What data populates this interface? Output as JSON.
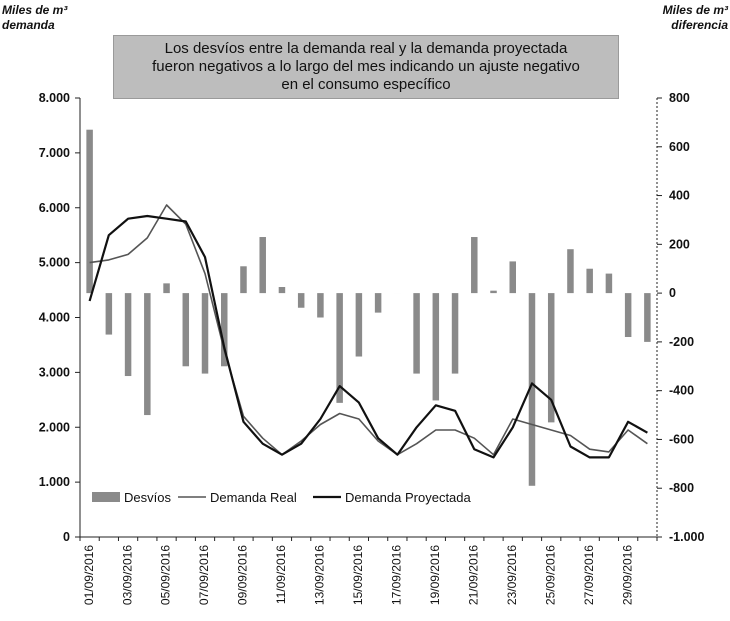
{
  "y_left_label": {
    "line1": "Miles de m³",
    "line2": "demanda"
  },
  "y_right_label": {
    "line1": "Miles de m³",
    "line2": "diferencia"
  },
  "annotation": {
    "line1": "Los desvíos entre la demanda real y la demanda proyectada",
    "line2": "fueron negativos a lo largo del mes indicando un ajuste negativo",
    "line3": "en el consumo específico"
  },
  "colors": {
    "bars": "#8a8a8a",
    "real": "#555555",
    "proyectada": "#111111",
    "annotation_bg": "#bdbdbd"
  },
  "chart_data": {
    "type": "bar+line",
    "x": [
      "01/09/2016",
      "02/09/2016",
      "03/09/2016",
      "04/09/2016",
      "05/09/2016",
      "06/09/2016",
      "07/09/2016",
      "08/09/2016",
      "09/09/2016",
      "10/09/2016",
      "11/09/2016",
      "12/09/2016",
      "13/09/2016",
      "14/09/2016",
      "15/09/2016",
      "16/09/2016",
      "17/09/2016",
      "18/09/2016",
      "19/09/2016",
      "20/09/2016",
      "21/09/2016",
      "22/09/2016",
      "23/09/2016",
      "24/09/2016",
      "25/09/2016",
      "26/09/2016",
      "27/09/2016",
      "28/09/2016",
      "29/09/2016",
      "30/09/2016"
    ],
    "x_tick_labels": [
      "01/09/2016",
      "03/09/2016",
      "05/09/2016",
      "07/09/2016",
      "09/09/2016",
      "11/09/2016",
      "13/09/2016",
      "15/09/2016",
      "17/09/2016",
      "19/09/2016",
      "21/09/2016",
      "23/09/2016",
      "25/09/2016",
      "27/09/2016",
      "29/09/2016"
    ],
    "y_left": {
      "range": [
        0,
        8000
      ],
      "ticks": [
        0,
        1000,
        2000,
        3000,
        4000,
        5000,
        6000,
        7000,
        8000
      ],
      "tick_labels": [
        "0",
        "1.000",
        "2.000",
        "3.000",
        "4.000",
        "5.000",
        "6.000",
        "7.000",
        "8.000"
      ]
    },
    "y_right": {
      "range": [
        -1000,
        800
      ],
      "ticks": [
        -1000,
        -800,
        -600,
        -400,
        -200,
        0,
        200,
        400,
        600,
        800
      ],
      "tick_labels": [
        "-1.000",
        "-800",
        "-600",
        "-400",
        "-200",
        "0",
        "200",
        "400",
        "600",
        "800"
      ]
    },
    "series": [
      {
        "name": "Desvíos",
        "type": "bar",
        "axis": "right",
        "values": [
          670,
          -170,
          -340,
          -500,
          40,
          -300,
          -330,
          -300,
          110,
          230,
          25,
          -60,
          -100,
          -450,
          -260,
          -80,
          0,
          -330,
          -440,
          -330,
          230,
          10,
          130,
          -790,
          -530,
          180,
          100,
          80,
          -180,
          -200
        ]
      },
      {
        "name": "Demanda Real",
        "type": "line",
        "axis": "left",
        "values": [
          5000,
          5050,
          5150,
          5450,
          6050,
          5700,
          4800,
          3400,
          2200,
          1800,
          1500,
          1750,
          2050,
          2250,
          2150,
          1750,
          1500,
          1700,
          1950,
          1950,
          1800,
          1500,
          2150,
          2050,
          1950,
          1850,
          1600,
          1550,
          1950,
          1700
        ]
      },
      {
        "name": "Demanda Proyectada",
        "type": "line",
        "axis": "left",
        "values": [
          4300,
          5500,
          5800,
          5850,
          5800,
          5750,
          5100,
          3450,
          2100,
          1700,
          1500,
          1700,
          2150,
          2750,
          2450,
          1800,
          1500,
          2000,
          2400,
          2300,
          1600,
          1450,
          2000,
          2800,
          2500,
          1650,
          1450,
          1450,
          2100,
          1900
        ]
      }
    ],
    "legend": {
      "position": "bottom-left",
      "entries": [
        "Desvíos",
        "Demanda Real",
        "Demanda Proyectada"
      ]
    },
    "grid": false
  }
}
